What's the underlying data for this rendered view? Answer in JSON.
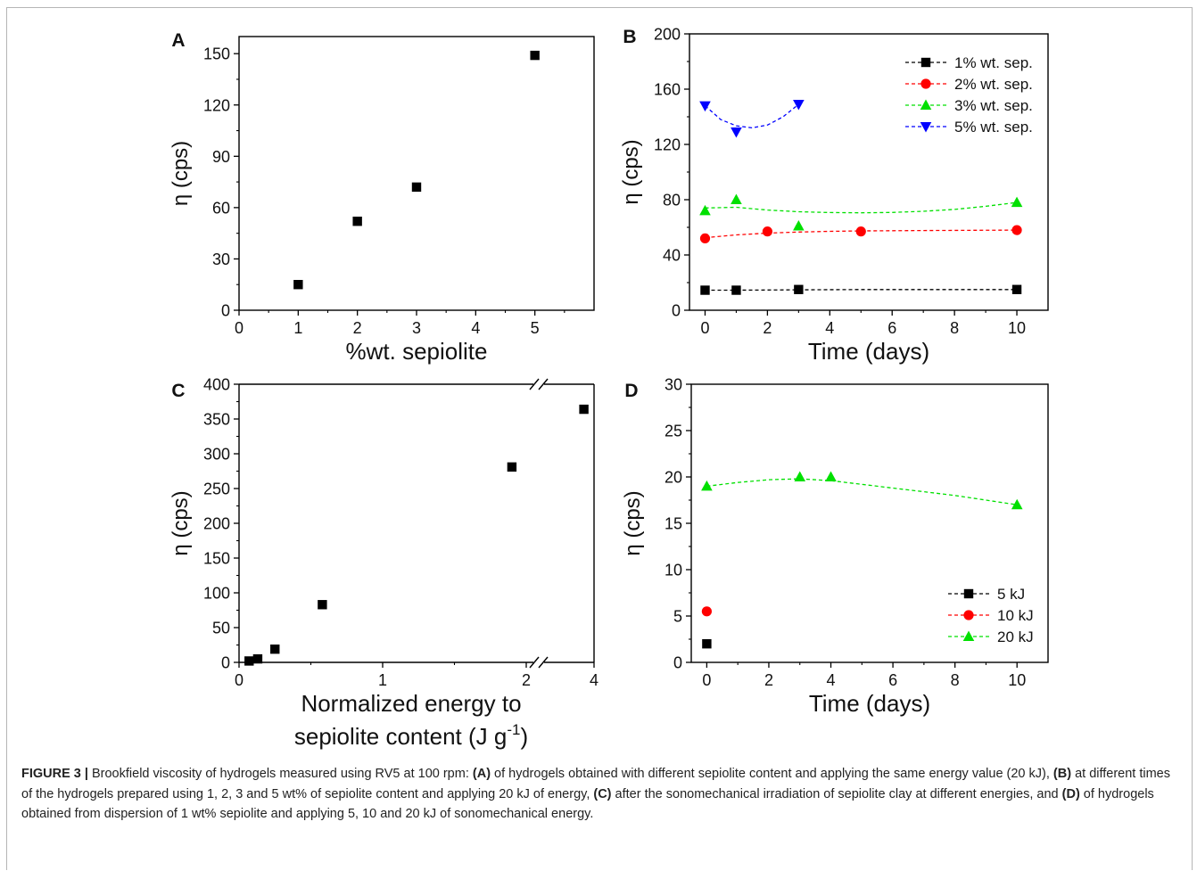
{
  "caption": {
    "label": "FIGURE 3 |",
    "parts": [
      {
        "t": " Brookfield viscosity of hydrogels measured using RV5 at 100 rpm: ",
        "b": false
      },
      {
        "t": "(A)",
        "b": true
      },
      {
        "t": " of hydrogels obtained with different sepiolite content and applying the same energy value (20 kJ), ",
        "b": false
      },
      {
        "t": "(B)",
        "b": true
      },
      {
        "t": " at different times of the hydrogels prepared using 1, 2, 3 and 5 wt% of sepiolite content and applying 20 kJ of energy, ",
        "b": false
      },
      {
        "t": "(C)",
        "b": true
      },
      {
        "t": " after the sonomechanical irradiation of sepiolite clay at different energies, and ",
        "b": false
      },
      {
        "t": "(D)",
        "b": true
      },
      {
        "t": " of hydrogels obtained from dispersion of 1 wt% sepiolite and applying 5, 10 and 20 kJ of sonomechanical energy.",
        "b": false
      }
    ]
  },
  "chart_data": [
    {
      "panel": "A",
      "type": "scatter",
      "xlabel": "%wt. sepiolite",
      "ylabel": "η (cps)",
      "xlim": [
        0,
        6
      ],
      "ylim": [
        0,
        160
      ],
      "xticks": [
        0,
        1,
        2,
        3,
        4,
        5
      ],
      "yticks": [
        0,
        30,
        60,
        90,
        120,
        150
      ],
      "series": [
        {
          "marker": "square",
          "color": "#000000",
          "x": [
            1,
            2,
            3,
            5
          ],
          "y": [
            15,
            52,
            72,
            149
          ]
        }
      ]
    },
    {
      "panel": "B",
      "type": "line",
      "xlabel": "Time (days)",
      "ylabel": "η (cps)",
      "xlim": [
        -0.5,
        11
      ],
      "ylim": [
        0,
        200
      ],
      "xticks": [
        0,
        2,
        4,
        6,
        8,
        10
      ],
      "yticks": [
        0,
        40,
        80,
        120,
        160,
        200
      ],
      "legend": "top-right",
      "series": [
        {
          "name": "1% wt. sep.",
          "marker": "square",
          "color": "#000000",
          "x": [
            0,
            1,
            3,
            10
          ],
          "y": [
            14.5,
            14.5,
            15,
            15
          ],
          "fit": [
            [
              0,
              14.5
            ],
            [
              1,
              14.5
            ],
            [
              3,
              14.8
            ],
            [
              5,
              15
            ],
            [
              10,
              15
            ]
          ]
        },
        {
          "name": "2% wt. sep.",
          "marker": "circle",
          "color": "#ff0000",
          "x": [
            0,
            2,
            5,
            10
          ],
          "y": [
            52,
            57,
            57,
            58
          ],
          "fit": [
            [
              0,
              52.5
            ],
            [
              1,
              54.5
            ],
            [
              2,
              55.8
            ],
            [
              3,
              56.6
            ],
            [
              4,
              57.1
            ],
            [
              5,
              57.4
            ],
            [
              7,
              57.7
            ],
            [
              10,
              58
            ]
          ]
        },
        {
          "name": "3% wt. sep.",
          "marker": "triangle-up",
          "color": "#00e000",
          "x": [
            0,
            1,
            3,
            10
          ],
          "y": [
            72,
            80,
            61,
            78
          ],
          "fit": [
            [
              0,
              74
            ],
            [
              1,
              74.5
            ],
            [
              2,
              72.5
            ],
            [
              3,
              71.3
            ],
            [
              4,
              70.7
            ],
            [
              5,
              70.5
            ],
            [
              6,
              70.8
            ],
            [
              7,
              71.6
            ],
            [
              8,
              73
            ],
            [
              9,
              75.2
            ],
            [
              10,
              78
            ]
          ]
        },
        {
          "name": "5% wt. sep.",
          "marker": "triangle-down",
          "color": "#0000ff",
          "x": [
            0,
            1,
            3
          ],
          "y": [
            148,
            129,
            149
          ],
          "fit": [
            [
              0,
              148
            ],
            [
              0.5,
              138
            ],
            [
              1,
              133.5
            ],
            [
              1.5,
              132
            ],
            [
              2,
              134
            ],
            [
              2.5,
              140
            ],
            [
              3,
              149
            ]
          ]
        }
      ]
    },
    {
      "panel": "C",
      "type": "scatter",
      "xlabel_line1": "Normalized energy to",
      "xlabel_line2": "sepiolite content (J g",
      "xlabel_sup": "-1",
      "xlabel_close": ")",
      "ylabel": "η (cps)",
      "ylim": [
        0,
        400
      ],
      "xticks": [
        "0",
        "1",
        "2",
        "4"
      ],
      "yticks": [
        0,
        50,
        100,
        150,
        200,
        250,
        300,
        350,
        400
      ],
      "axis_break": true,
      "series": [
        {
          "marker": "square",
          "color": "#000000",
          "x": [
            0.07,
            0.13,
            0.25,
            0.58,
            1.9,
            3.7
          ],
          "y": [
            2,
            5,
            19,
            83,
            281,
            364
          ]
        }
      ]
    },
    {
      "panel": "D",
      "type": "line",
      "xlabel": "Time (days)",
      "ylabel": "η (cps)",
      "xlim": [
        -0.5,
        11
      ],
      "ylim": [
        0,
        30
      ],
      "xticks": [
        0,
        2,
        4,
        6,
        8,
        10
      ],
      "yticks": [
        0,
        5,
        10,
        15,
        20,
        25,
        30
      ],
      "legend": "bottom-right",
      "series": [
        {
          "name": "5 kJ",
          "marker": "square",
          "color": "#000000",
          "x": [
            0
          ],
          "y": [
            2
          ],
          "fit": []
        },
        {
          "name": "10 kJ",
          "marker": "circle",
          "color": "#ff0000",
          "x": [
            0
          ],
          "y": [
            5.5
          ],
          "fit": []
        },
        {
          "name": "20 kJ",
          "marker": "triangle-up",
          "color": "#00e000",
          "x": [
            0,
            3,
            4,
            10
          ],
          "y": [
            19,
            20,
            20,
            17
          ],
          "fit": [
            [
              0,
              19
            ],
            [
              1,
              19.4
            ],
            [
              2,
              19.7
            ],
            [
              3,
              19.8
            ],
            [
              4,
              19.6
            ],
            [
              5,
              19.2
            ],
            [
              6,
              18.8
            ],
            [
              7,
              18.4
            ],
            [
              8,
              18
            ],
            [
              9,
              17.5
            ],
            [
              10,
              17
            ]
          ]
        }
      ]
    }
  ]
}
